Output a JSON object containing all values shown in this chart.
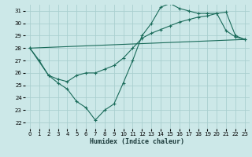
{
  "xlabel": "Humidex (Indice chaleur)",
  "bg_color": "#cce8e8",
  "grid_color": "#aacfcf",
  "line_color": "#1a6b5a",
  "xlim": [
    -0.5,
    23.5
  ],
  "ylim": [
    21.5,
    31.5
  ],
  "xticks": [
    0,
    1,
    2,
    3,
    4,
    5,
    6,
    7,
    8,
    9,
    10,
    11,
    12,
    13,
    14,
    15,
    16,
    17,
    18,
    19,
    20,
    21,
    22,
    23
  ],
  "yticks": [
    22,
    23,
    24,
    25,
    26,
    27,
    28,
    29,
    30,
    31
  ],
  "line1_x": [
    0,
    1,
    2,
    3,
    4,
    5,
    6,
    7,
    8,
    9,
    10,
    11,
    12,
    13,
    14,
    15,
    16,
    17,
    18,
    19,
    20,
    21,
    22,
    23
  ],
  "line1_y": [
    28.0,
    27.0,
    25.8,
    25.2,
    24.7,
    23.7,
    23.2,
    22.2,
    23.0,
    23.5,
    25.2,
    27.0,
    29.0,
    30.0,
    31.3,
    31.6,
    31.2,
    31.0,
    30.8,
    30.8,
    30.8,
    29.4,
    28.9,
    28.7
  ],
  "line2_x": [
    0,
    2,
    3,
    4,
    5,
    6,
    7,
    8,
    9,
    10,
    11,
    12,
    13,
    14,
    15,
    16,
    17,
    18,
    19,
    20,
    21,
    22,
    23
  ],
  "line2_y": [
    28.0,
    25.8,
    25.5,
    25.3,
    25.8,
    26.0,
    26.0,
    26.3,
    26.6,
    27.2,
    28.0,
    28.8,
    29.2,
    29.5,
    29.8,
    30.1,
    30.3,
    30.5,
    30.6,
    30.8,
    30.9,
    29.0,
    28.7
  ],
  "line3_x": [
    0,
    23
  ],
  "line3_y": [
    28.0,
    28.7
  ]
}
